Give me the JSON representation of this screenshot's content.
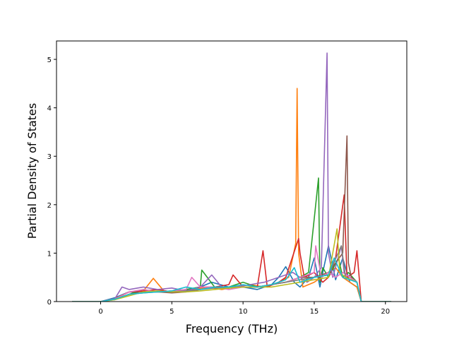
{
  "chart_data": {
    "type": "line",
    "title": "",
    "xlabel": "Frequency (THz)",
    "ylabel": "Partial Density of States",
    "xlim": [
      -3.1,
      21.5
    ],
    "ylim": [
      0,
      5.38
    ],
    "xticks": [
      0,
      5,
      10,
      15,
      20
    ],
    "xtick_labels": [
      "0",
      "5",
      "10",
      "15",
      "20"
    ],
    "yticks": [
      0,
      1,
      2,
      3,
      4,
      5
    ],
    "ytick_labels": [
      "0",
      "1",
      "2",
      "3",
      "4",
      "5"
    ],
    "grid": false,
    "legend": "none",
    "colors": [
      "#1f77b4",
      "#ff7f0e",
      "#2ca02c",
      "#d62728",
      "#9467bd",
      "#8c564b",
      "#e377c2",
      "#7f7f7f",
      "#bcbd22",
      "#17becf"
    ],
    "series": [
      {
        "x": [
          -2.0,
          0.0,
          1.0,
          2.0,
          3.0,
          4.0,
          5.0,
          6.0,
          7.0,
          7.8,
          9.0,
          10.0,
          11.0,
          12.0,
          12.5,
          13.0,
          13.6,
          14.0,
          14.6,
          15.0,
          15.4,
          15.6,
          16.0,
          16.5,
          17.0,
          17.5,
          18.0,
          18.3,
          20.4
        ],
        "y": [
          0,
          0,
          0.08,
          0.2,
          0.18,
          0.22,
          0.2,
          0.25,
          0.3,
          0.4,
          0.3,
          0.3,
          0.25,
          0.35,
          0.5,
          0.72,
          0.4,
          0.3,
          0.5,
          0.9,
          0.3,
          0.6,
          1.15,
          0.45,
          0.9,
          0.4,
          0.3,
          0,
          0
        ]
      },
      {
        "x": [
          -2.0,
          0.0,
          1.0,
          2.0,
          3.0,
          3.7,
          4.5,
          5.5,
          6.5,
          7.5,
          8.5,
          9.5,
          10.5,
          11.5,
          12.5,
          13.2,
          13.7,
          13.8,
          13.9,
          14.2,
          15.0,
          15.5,
          16.0,
          16.5,
          17.0,
          17.5,
          18.0,
          18.3,
          20.4
        ],
        "y": [
          0,
          0,
          0.06,
          0.2,
          0.22,
          0.48,
          0.2,
          0.2,
          0.25,
          0.3,
          0.25,
          0.3,
          0.35,
          0.3,
          0.4,
          0.5,
          1.2,
          4.4,
          1.0,
          0.3,
          0.4,
          0.5,
          0.6,
          0.7,
          0.5,
          0.4,
          0.3,
          0,
          0
        ]
      },
      {
        "x": [
          -2.0,
          0.0,
          1.0,
          2.0,
          3.0,
          4.0,
          5.0,
          6.0,
          7.0,
          7.1,
          8.0,
          9.0,
          10.0,
          11.0,
          12.0,
          13.0,
          14.0,
          14.6,
          15.3,
          15.4,
          15.6,
          16.0,
          16.7,
          17.0,
          17.4,
          18.0,
          18.3,
          20.4
        ],
        "y": [
          0,
          0,
          0.05,
          0.15,
          0.25,
          0.2,
          0.22,
          0.25,
          0.3,
          0.65,
          0.3,
          0.3,
          0.4,
          0.3,
          0.35,
          0.4,
          0.5,
          0.6,
          2.55,
          0.4,
          0.7,
          0.5,
          0.9,
          0.5,
          0.6,
          0.4,
          0,
          0
        ]
      },
      {
        "x": [
          -2.0,
          0.0,
          1.0,
          2.0,
          3.0,
          4.0,
          5.0,
          6.0,
          7.0,
          8.0,
          9.0,
          9.3,
          10.0,
          11.0,
          11.4,
          11.7,
          12.5,
          13.0,
          13.9,
          14.0,
          14.3,
          15.0,
          15.6,
          16.0,
          16.5,
          17.1,
          17.3,
          17.8,
          18.0,
          18.3,
          20.4
        ],
        "y": [
          0,
          0,
          0.05,
          0.2,
          0.22,
          0.25,
          0.2,
          0.22,
          0.3,
          0.3,
          0.35,
          0.55,
          0.3,
          0.3,
          1.05,
          0.3,
          0.4,
          0.5,
          1.3,
          1.0,
          0.5,
          0.6,
          0.4,
          0.5,
          0.9,
          2.2,
          0.5,
          0.6,
          1.05,
          0,
          0
        ]
      },
      {
        "x": [
          -2.0,
          0.0,
          1.0,
          1.5,
          2.0,
          3.0,
          4.0,
          5.0,
          6.0,
          7.0,
          7.8,
          8.5,
          9.5,
          10.5,
          11.5,
          12.5,
          13.5,
          14.5,
          15.0,
          15.5,
          15.9,
          16.0,
          16.3,
          16.9,
          17.1,
          17.5,
          18.0,
          18.3,
          20.4
        ],
        "y": [
          0,
          0,
          0.06,
          0.3,
          0.25,
          0.3,
          0.25,
          0.28,
          0.22,
          0.3,
          0.55,
          0.3,
          0.3,
          0.35,
          0.4,
          0.5,
          0.6,
          0.4,
          0.5,
          0.7,
          5.13,
          1.0,
          0.5,
          1.15,
          0.6,
          0.5,
          0.4,
          0,
          0
        ]
      },
      {
        "x": [
          -2.0,
          0.0,
          1.0,
          2.0,
          3.0,
          4.0,
          5.0,
          6.0,
          7.0,
          8.0,
          9.0,
          10.0,
          11.0,
          12.0,
          13.0,
          14.0,
          15.0,
          16.0,
          16.5,
          17.0,
          17.3,
          17.4,
          17.6,
          18.0,
          18.3,
          20.4
        ],
        "y": [
          0,
          0,
          0.05,
          0.15,
          0.2,
          0.2,
          0.18,
          0.2,
          0.25,
          0.3,
          0.28,
          0.3,
          0.3,
          0.35,
          0.4,
          0.5,
          0.5,
          0.6,
          0.8,
          1.0,
          3.42,
          0.8,
          0.5,
          0.4,
          0,
          0
        ]
      },
      {
        "x": [
          -2.0,
          0.0,
          1.0,
          2.0,
          3.0,
          4.0,
          5.0,
          6.0,
          6.4,
          7.0,
          8.0,
          9.0,
          10.0,
          11.0,
          12.0,
          13.0,
          14.0,
          15.0,
          15.1,
          15.5,
          16.0,
          16.5,
          17.0,
          18.0,
          18.3,
          20.4
        ],
        "y": [
          0,
          0,
          0.05,
          0.2,
          0.25,
          0.2,
          0.22,
          0.25,
          0.5,
          0.3,
          0.3,
          0.25,
          0.3,
          0.3,
          0.35,
          0.4,
          0.5,
          0.6,
          1.15,
          0.5,
          0.6,
          0.5,
          0.6,
          0.4,
          0,
          0
        ]
      },
      {
        "x": [
          -2.0,
          0.0,
          1.0,
          2.0,
          3.0,
          4.0,
          5.0,
          6.0,
          7.0,
          8.0,
          9.0,
          10.0,
          11.0,
          12.0,
          13.0,
          14.0,
          15.0,
          16.0,
          16.9,
          17.2,
          18.0,
          18.3,
          20.4
        ],
        "y": [
          0,
          0,
          0.04,
          0.15,
          0.18,
          0.2,
          0.2,
          0.22,
          0.25,
          0.28,
          0.3,
          0.3,
          0.3,
          0.35,
          0.4,
          0.45,
          0.5,
          0.55,
          1.15,
          0.5,
          0.4,
          0,
          0
        ]
      },
      {
        "x": [
          -2.0,
          0.0,
          1.0,
          2.0,
          3.0,
          4.0,
          5.0,
          6.0,
          7.0,
          8.0,
          9.0,
          10.0,
          11.0,
          12.0,
          13.0,
          14.0,
          15.0,
          16.0,
          16.6,
          16.8,
          17.2,
          18.0,
          18.3,
          20.4
        ],
        "y": [
          0,
          0,
          0.04,
          0.12,
          0.2,
          0.22,
          0.2,
          0.2,
          0.22,
          0.25,
          0.28,
          0.3,
          0.3,
          0.3,
          0.35,
          0.4,
          0.45,
          0.5,
          1.5,
          0.6,
          0.5,
          0.4,
          0,
          0
        ]
      },
      {
        "x": [
          -2.0,
          0.0,
          1.0,
          2.0,
          3.0,
          4.0,
          5.0,
          6.0,
          7.0,
          8.0,
          9.0,
          10.0,
          11.0,
          12.0,
          13.0,
          13.6,
          14.0,
          15.0,
          16.0,
          16.4,
          17.0,
          18.0,
          18.3,
          20.4
        ],
        "y": [
          0,
          0,
          0.05,
          0.15,
          0.18,
          0.2,
          0.22,
          0.3,
          0.25,
          0.3,
          0.3,
          0.35,
          0.3,
          0.35,
          0.45,
          0.7,
          0.4,
          0.5,
          0.55,
          0.9,
          0.5,
          0.4,
          0,
          0
        ]
      }
    ]
  }
}
